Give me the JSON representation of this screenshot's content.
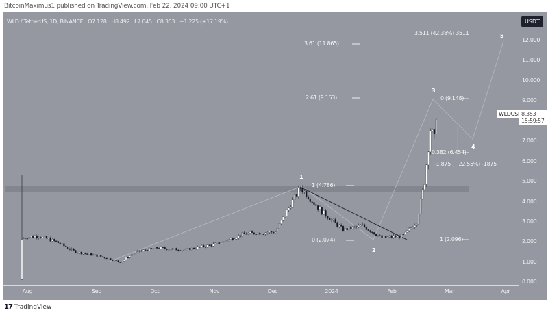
{
  "header": {
    "published": "BitcoinMaximus1 published on TradingView.com, Feb 22, 2024 09:00 UTC+1"
  },
  "legend": {
    "symbol": "WLD / TetherUS, 1D, BINANCE",
    "open_label": "O",
    "open": "7.128",
    "high_label": "H",
    "high": "8.492",
    "low_label": "L",
    "low": "7.045",
    "close_label": "C",
    "close": "8.353",
    "change": "+1.225 (+17.19%)"
  },
  "price_axis": {
    "currency": "USDT",
    "ticks": [
      "12.000",
      "11.000",
      "10.000",
      "9.000",
      "7.000",
      "6.000",
      "5.000",
      "4.000",
      "3.000",
      "2.000",
      "1.000",
      "0.000"
    ]
  },
  "time_axis": {
    "ticks": [
      "Aug",
      "Sep",
      "Oct",
      "Nov",
      "Dec",
      "2024",
      "Feb",
      "Mar",
      "Apr"
    ]
  },
  "last_price": {
    "symbol": "WLDUSDT",
    "price": "8.353",
    "countdown": "15:59:57"
  },
  "annotations": {
    "fib_3511": "3.511 (42.38%) 3511",
    "fib_361": "3.61 (11.865)",
    "fib_261": "2.61 (9.153)",
    "fib_0_top": "0 (9.148)",
    "fib_0382": "0.382 (6.454)",
    "fib_neg1875": "-1.875 (−22.55%) -1875",
    "fib_1_4786": "1 (4.786)",
    "fib_0_2074": "0 (2.074)",
    "fib_1_2096": "1 (2.096)"
  },
  "waves": [
    "1",
    "2",
    "3",
    "4",
    "5"
  ],
  "footer": {
    "logo": "17",
    "brand": "TradingView"
  },
  "colors": {
    "background": "#9598a1",
    "candle_up": "#ffffff",
    "candle_down": "#131722",
    "resistance_band": "#80838c",
    "wave_line": "#b8bbc2",
    "trendline": "#2a2e39"
  },
  "chart_data": {
    "type": "candlestick",
    "title": "WLD / TetherUS, 1D, BINANCE",
    "xlabel": "",
    "ylabel": "USDT",
    "ylim": [
      0,
      12.5
    ],
    "x_ticks": [
      "Aug",
      "Sep",
      "Oct",
      "Nov",
      "Dec",
      "2024",
      "Feb",
      "Mar",
      "Apr"
    ],
    "y_ticks": [
      0,
      1,
      2,
      3,
      4,
      5,
      6,
      7,
      9,
      10,
      11,
      12
    ],
    "ohlc_last": {
      "open": 7.128,
      "high": 8.492,
      "low": 7.045,
      "close": 8.353,
      "change": 1.225,
      "change_pct": 17.19
    },
    "price_path_approx": [
      {
        "date": "2023-07-24",
        "close": 2.2
      },
      {
        "date": "2023-08-01",
        "close": 2.3
      },
      {
        "date": "2023-08-10",
        "close": 2.0
      },
      {
        "date": "2023-08-20",
        "close": 1.5
      },
      {
        "date": "2023-09-01",
        "close": 1.3
      },
      {
        "date": "2023-09-12",
        "close": 1.0
      },
      {
        "date": "2023-09-20",
        "close": 1.5
      },
      {
        "date": "2023-10-01",
        "close": 1.7
      },
      {
        "date": "2023-10-15",
        "close": 1.6
      },
      {
        "date": "2023-11-01",
        "close": 1.9
      },
      {
        "date": "2023-11-15",
        "close": 2.4
      },
      {
        "date": "2023-12-01",
        "close": 2.5
      },
      {
        "date": "2023-12-14",
        "close": 4.7
      },
      {
        "date": "2023-12-25",
        "close": 3.5
      },
      {
        "date": "2024-01-05",
        "close": 2.6
      },
      {
        "date": "2024-01-15",
        "close": 2.8
      },
      {
        "date": "2024-01-25",
        "close": 2.2
      },
      {
        "date": "2024-02-05",
        "close": 2.3
      },
      {
        "date": "2024-02-12",
        "close": 3.0
      },
      {
        "date": "2024-02-16",
        "close": 5.0
      },
      {
        "date": "2024-02-19",
        "close": 7.6
      },
      {
        "date": "2024-02-21",
        "close": 7.1
      },
      {
        "date": "2024-02-22",
        "close": 8.353
      }
    ],
    "elliott_waves": [
      {
        "label": "1",
        "price": 4.786
      },
      {
        "label": "2",
        "price": 2.074
      },
      {
        "label": "3",
        "price": 9.148
      },
      {
        "label": "4",
        "price": 6.454
      },
      {
        "label": "5",
        "price": 12.7
      }
    ],
    "fib_levels": [
      {
        "label": "3.61",
        "price": 11.865
      },
      {
        "label": "2.61",
        "price": 9.153
      },
      {
        "label": "1",
        "price": 4.786
      },
      {
        "label": "0",
        "price": 2.074
      },
      {
        "label": "0",
        "price": 9.148
      },
      {
        "label": "0.382",
        "price": 6.454
      },
      {
        "label": "1",
        "price": 2.096
      }
    ],
    "resistance_zone": [
      4.5,
      4.8
    ],
    "annotations": [
      "3.511 (42.38%) 3511",
      "-1.875 (−22.55%) -1875"
    ],
    "grid": false,
    "legend_position": "top-left"
  }
}
